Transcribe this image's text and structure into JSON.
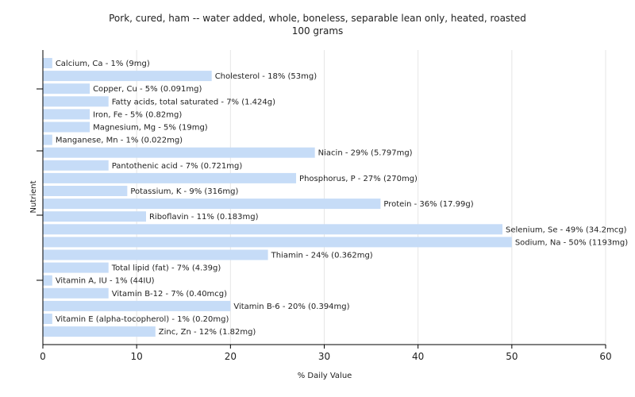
{
  "chart_data": {
    "type": "bar",
    "orientation": "horizontal",
    "title": "Pork, cured, ham -- water added, whole, boneless, separable lean only, heated, roasted",
    "subtitle": "100 grams",
    "xlabel": "% Daily Value",
    "ylabel": "Nutrient",
    "xlim": [
      0,
      60
    ],
    "xticks": [
      0,
      10,
      20,
      30,
      40,
      50,
      60
    ],
    "grid": true,
    "bar_color": "#c6dcf7",
    "categories": [
      "Calcium, Ca",
      "Cholesterol",
      "Copper, Cu",
      "Fatty acids, total saturated",
      "Iron, Fe",
      "Magnesium, Mg",
      "Manganese, Mn",
      "Niacin",
      "Pantothenic acid",
      "Phosphorus, P",
      "Potassium, K",
      "Protein",
      "Riboflavin",
      "Selenium, Se",
      "Sodium, Na",
      "Thiamin",
      "Total lipid (fat)",
      "Vitamin A, IU",
      "Vitamin B-12",
      "Vitamin B-6",
      "Vitamin E (alpha-tocopherol)",
      "Zinc, Zn"
    ],
    "values": [
      1,
      18,
      5,
      7,
      5,
      5,
      1,
      29,
      7,
      27,
      9,
      36,
      11,
      49,
      50,
      24,
      7,
      1,
      7,
      20,
      1,
      12
    ],
    "labels": [
      "Calcium, Ca - 1% (9mg)",
      "Cholesterol - 18% (53mg)",
      "Copper, Cu - 5% (0.091mg)",
      "Fatty acids, total saturated - 7% (1.424g)",
      "Iron, Fe - 5% (0.82mg)",
      "Magnesium, Mg - 5% (19mg)",
      "Manganese, Mn - 1% (0.022mg)",
      "Niacin - 29% (5.797mg)",
      "Pantothenic acid - 7% (0.721mg)",
      "Phosphorus, P - 27% (270mg)",
      "Potassium, K - 9% (316mg)",
      "Protein - 36% (17.99g)",
      "Riboflavin - 11% (0.183mg)",
      "Selenium, Se - 49% (34.2mcg)",
      "Sodium, Na - 50% (1193mg)",
      "Thiamin - 24% (0.362mg)",
      "Total lipid (fat) - 7% (4.39g)",
      "Vitamin A, IU - 1% (44IU)",
      "Vitamin B-12 - 7% (0.40mcg)",
      "Vitamin B-6 - 20% (0.394mg)",
      "Vitamin E (alpha-tocopherol) - 1% (0.20mg)",
      "Zinc, Zn - 12% (1.82mg)"
    ]
  }
}
